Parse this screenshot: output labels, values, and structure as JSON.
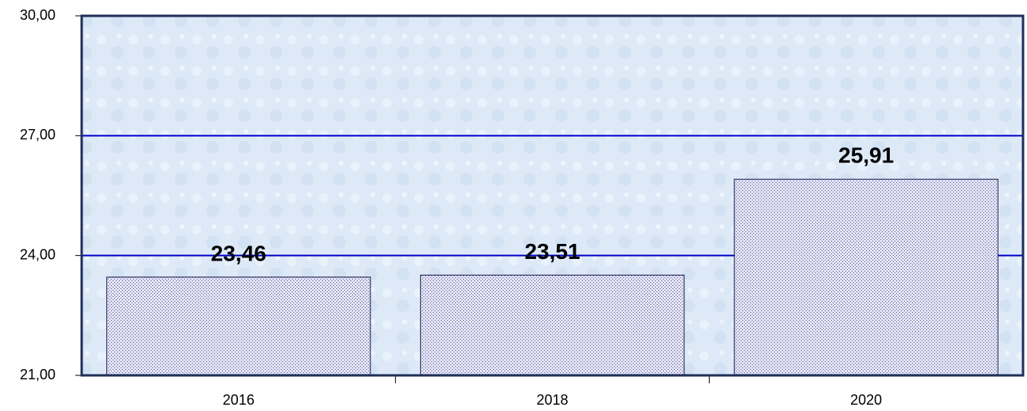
{
  "chart_data": {
    "type": "bar",
    "categories": [
      "2016",
      "2018",
      "2020"
    ],
    "values": [
      23.46,
      23.51,
      25.91
    ],
    "value_labels": [
      "23,46",
      "23,51",
      "25,91"
    ],
    "color": "#c9c9ec",
    "ylim": [
      21,
      30
    ],
    "yticks": [
      {
        "value": 21,
        "label": "21,00"
      },
      {
        "value": 24,
        "label": "24,00"
      },
      {
        "value": 27,
        "label": "27,00"
      },
      {
        "value": 30,
        "label": "30,00"
      }
    ],
    "grid": true
  }
}
